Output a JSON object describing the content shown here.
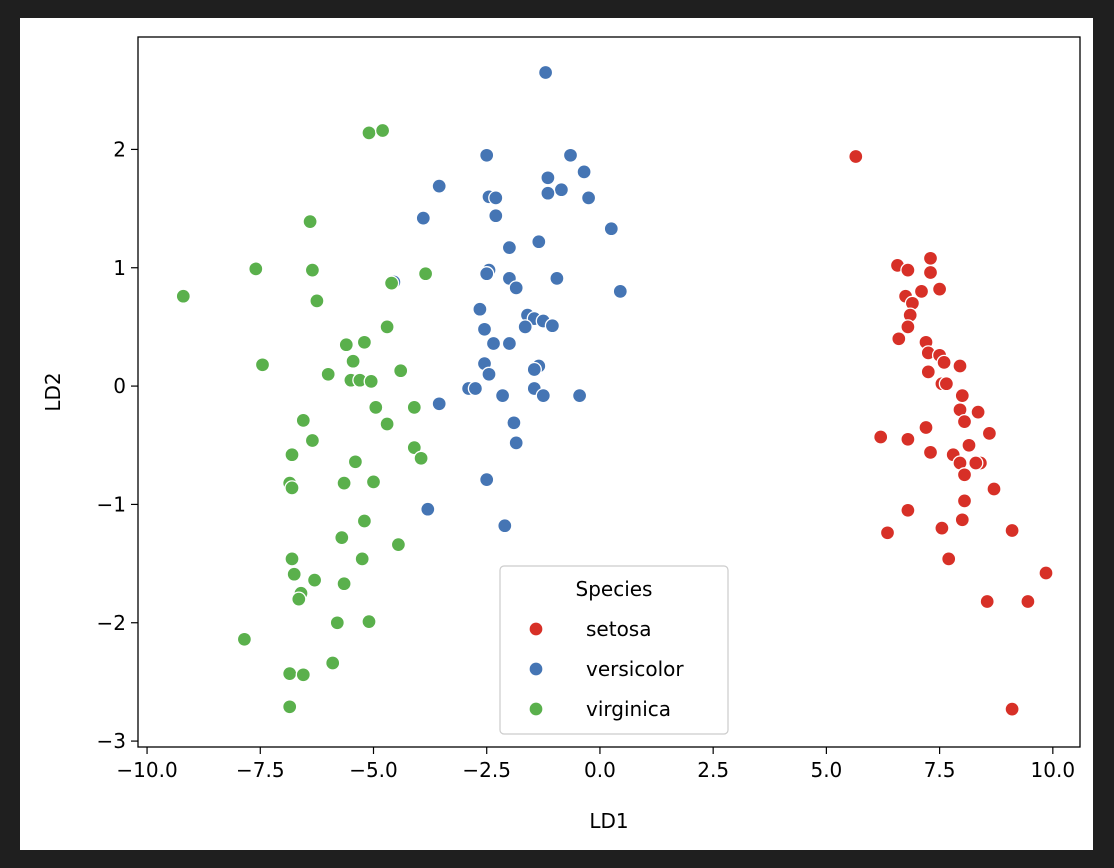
{
  "chart_data": {
    "type": "scatter",
    "xlabel": "LD1",
    "ylabel": "LD2",
    "xlim": [
      -10.2,
      10.6
    ],
    "ylim": [
      -3.05,
      2.95
    ],
    "xticks": [
      -10.0,
      -7.5,
      -5.0,
      -2.5,
      0.0,
      2.5,
      5.0,
      7.5,
      10.0
    ],
    "xtick_labels": [
      "−10.0",
      "−7.5",
      "−5.0",
      "−2.5",
      "0.0",
      "2.5",
      "5.0",
      "7.5",
      "10.0"
    ],
    "yticks": [
      -3,
      -2,
      -1,
      0,
      1,
      2
    ],
    "ytick_labels": [
      "−3",
      "−2",
      "−1",
      "0",
      "1",
      "2"
    ],
    "grid": false,
    "legend": {
      "title": "Species",
      "placement": "lower-center"
    },
    "series": [
      {
        "name": "setosa",
        "color": "#d73027",
        "points": [
          [
            5.65,
            1.94
          ],
          [
            7.3,
            1.08
          ],
          [
            6.57,
            1.02
          ],
          [
            6.8,
            0.98
          ],
          [
            7.3,
            0.96
          ],
          [
            6.75,
            0.76
          ],
          [
            7.1,
            0.8
          ],
          [
            7.5,
            0.82
          ],
          [
            6.9,
            0.7
          ],
          [
            6.85,
            0.6
          ],
          [
            6.8,
            0.5
          ],
          [
            6.6,
            0.4
          ],
          [
            7.2,
            0.37
          ],
          [
            7.25,
            0.28
          ],
          [
            7.5,
            0.26
          ],
          [
            7.6,
            0.2
          ],
          [
            7.95,
            0.17
          ],
          [
            7.25,
            0.12
          ],
          [
            7.55,
            0.02
          ],
          [
            7.65,
            0.02
          ],
          [
            8.0,
            -0.08
          ],
          [
            7.95,
            -0.2
          ],
          [
            8.35,
            -0.22
          ],
          [
            8.05,
            -0.3
          ],
          [
            7.2,
            -0.35
          ],
          [
            8.6,
            -0.4
          ],
          [
            6.2,
            -0.43
          ],
          [
            6.8,
            -0.45
          ],
          [
            8.15,
            -0.5
          ],
          [
            7.3,
            -0.56
          ],
          [
            7.8,
            -0.58
          ],
          [
            7.95,
            -0.65
          ],
          [
            8.4,
            -0.65
          ],
          [
            8.3,
            -0.65
          ],
          [
            8.05,
            -0.75
          ],
          [
            8.7,
            -0.87
          ],
          [
            8.05,
            -0.97
          ],
          [
            6.8,
            -1.05
          ],
          [
            8.0,
            -1.13
          ],
          [
            7.55,
            -1.2
          ],
          [
            9.1,
            -1.22
          ],
          [
            6.35,
            -1.24
          ],
          [
            7.7,
            -1.46
          ],
          [
            9.85,
            -1.58
          ],
          [
            8.55,
            -1.82
          ],
          [
            9.45,
            -1.82
          ],
          [
            9.1,
            -2.73
          ]
        ]
      },
      {
        "name": "versicolor",
        "color": "#4575b4",
        "points": [
          [
            -1.2,
            2.65
          ],
          [
            -2.5,
            1.95
          ],
          [
            -0.65,
            1.95
          ],
          [
            -0.35,
            1.81
          ],
          [
            -1.15,
            1.76
          ],
          [
            -3.55,
            1.69
          ],
          [
            -0.85,
            1.66
          ],
          [
            -1.15,
            1.63
          ],
          [
            -2.45,
            1.6
          ],
          [
            -2.3,
            1.59
          ],
          [
            -0.25,
            1.59
          ],
          [
            -2.3,
            1.44
          ],
          [
            -3.9,
            1.42
          ],
          [
            0.25,
            1.33
          ],
          [
            -1.35,
            1.22
          ],
          [
            -2.0,
            1.17
          ],
          [
            -2.45,
            0.98
          ],
          [
            -2.5,
            0.95
          ],
          [
            -0.95,
            0.91
          ],
          [
            -2.0,
            0.91
          ],
          [
            -4.55,
            0.88
          ],
          [
            -1.85,
            0.83
          ],
          [
            0.45,
            0.8
          ],
          [
            -2.65,
            0.65
          ],
          [
            -1.6,
            0.6
          ],
          [
            -1.45,
            0.57
          ],
          [
            -1.25,
            0.55
          ],
          [
            -1.05,
            0.51
          ],
          [
            -1.65,
            0.5
          ],
          [
            -2.55,
            0.48
          ],
          [
            -2.35,
            0.36
          ],
          [
            -2.0,
            0.36
          ],
          [
            -2.55,
            0.19
          ],
          [
            -1.35,
            0.17
          ],
          [
            -1.45,
            0.14
          ],
          [
            -2.45,
            0.1
          ],
          [
            -2.9,
            -0.02
          ],
          [
            -2.75,
            -0.02
          ],
          [
            -1.45,
            -0.02
          ],
          [
            -1.25,
            -0.08
          ],
          [
            -0.45,
            -0.08
          ],
          [
            -2.15,
            -0.08
          ],
          [
            -3.55,
            -0.15
          ],
          [
            -1.9,
            -0.31
          ],
          [
            -1.85,
            -0.48
          ],
          [
            -2.5,
            -0.79
          ],
          [
            -3.8,
            -1.04
          ],
          [
            -2.1,
            -1.18
          ]
        ]
      },
      {
        "name": "virginica",
        "color": "#5ab04c",
        "points": [
          [
            -5.1,
            2.14
          ],
          [
            -4.8,
            2.16
          ],
          [
            -6.4,
            1.39
          ],
          [
            -7.6,
            0.99
          ],
          [
            -6.35,
            0.98
          ],
          [
            -3.85,
            0.95
          ],
          [
            -4.6,
            0.87
          ],
          [
            -6.25,
            0.72
          ],
          [
            -9.2,
            0.76
          ],
          [
            -4.7,
            0.5
          ],
          [
            -5.6,
            0.35
          ],
          [
            -5.2,
            0.37
          ],
          [
            -5.45,
            0.21
          ],
          [
            -7.45,
            0.18
          ],
          [
            -6.0,
            0.1
          ],
          [
            -4.4,
            0.13
          ],
          [
            -5.5,
            0.05
          ],
          [
            -5.3,
            0.05
          ],
          [
            -5.05,
            0.04
          ],
          [
            -4.95,
            -0.18
          ],
          [
            -4.1,
            -0.18
          ],
          [
            -6.55,
            -0.29
          ],
          [
            -4.7,
            -0.32
          ],
          [
            -6.35,
            -0.46
          ],
          [
            -4.1,
            -0.52
          ],
          [
            -6.8,
            -0.58
          ],
          [
            -3.95,
            -0.61
          ],
          [
            -5.4,
            -0.64
          ],
          [
            -6.85,
            -0.82
          ],
          [
            -5.65,
            -0.82
          ],
          [
            -5.0,
            -0.81
          ],
          [
            -6.8,
            -0.86
          ],
          [
            -5.2,
            -1.14
          ],
          [
            -5.7,
            -1.28
          ],
          [
            -4.45,
            -1.34
          ],
          [
            -6.8,
            -1.46
          ],
          [
            -5.25,
            -1.46
          ],
          [
            -6.75,
            -1.59
          ],
          [
            -6.3,
            -1.64
          ],
          [
            -5.65,
            -1.67
          ],
          [
            -6.6,
            -1.75
          ],
          [
            -6.65,
            -1.8
          ],
          [
            -5.8,
            -2.0
          ],
          [
            -5.1,
            -1.99
          ],
          [
            -7.85,
            -2.14
          ],
          [
            -5.9,
            -2.34
          ],
          [
            -6.85,
            -2.43
          ],
          [
            -6.55,
            -2.44
          ],
          [
            -6.85,
            -2.71
          ]
        ]
      }
    ]
  }
}
